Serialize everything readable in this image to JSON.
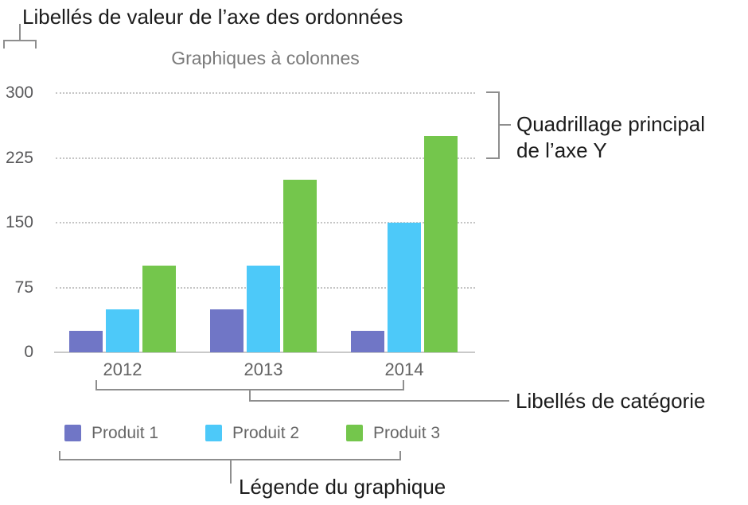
{
  "annotations": {
    "y_value_labels": "Libellés de valeur de l’axe des ordonnées",
    "y_gridlines_line1": "Quadrillage principal",
    "y_gridlines_line2": "de l’axe Y",
    "category_labels": "Libellés de catégorie",
    "chart_legend": "Légende du graphique"
  },
  "chart_data": {
    "type": "bar",
    "title": "Graphiques à colonnes",
    "categories": [
      "2012",
      "2013",
      "2014"
    ],
    "series": [
      {
        "name": "Produit 1",
        "color": "#7076C6",
        "values": [
          25,
          50,
          25
        ]
      },
      {
        "name": "Produit 2",
        "color": "#4DC9F9",
        "values": [
          50,
          100,
          150
        ]
      },
      {
        "name": "Produit 3",
        "color": "#74C64C",
        "values": [
          100,
          200,
          250
        ]
      }
    ],
    "ylabel": "",
    "xlabel": "",
    "ylim": [
      0,
      300
    ],
    "yticks": [
      0,
      75,
      150,
      225,
      300
    ],
    "grid": "horizontal-dotted",
    "legend_position": "bottom"
  },
  "colors": {
    "annotation_text": "#1c1c1c",
    "bracket_line": "#8e8e8e",
    "chart_text": "#636363",
    "title_text": "#7a7a7a",
    "gridline": "#c5c5c5",
    "axis_line": "#c9c9c9"
  }
}
